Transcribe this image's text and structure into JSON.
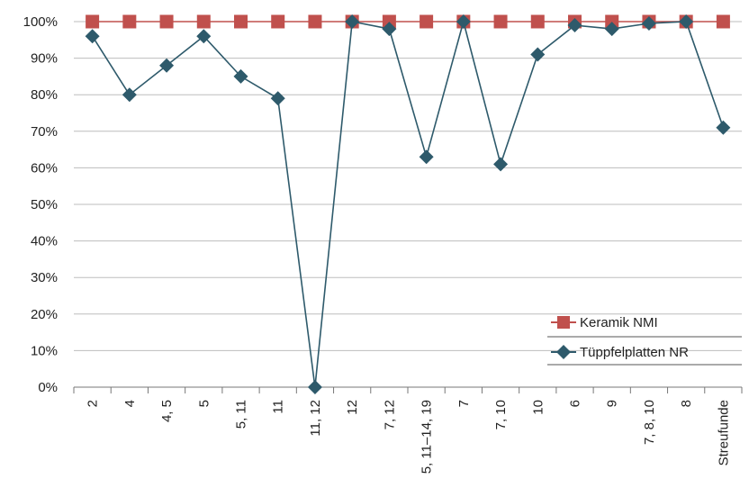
{
  "chart_data": {
    "type": "line",
    "categories": [
      "2",
      "4",
      "4, 5",
      "5",
      "5, 11",
      "11",
      "11, 12",
      "12",
      "7, 12",
      "5, 11–14, 19",
      "7",
      "7, 10",
      "10",
      "6",
      "9",
      "7, 8, 10",
      "8",
      "Streufunde"
    ],
    "series": [
      {
        "name": "Keramik NMI",
        "values": [
          100,
          100,
          100,
          100,
          100,
          100,
          100,
          100,
          100,
          100,
          100,
          100,
          100,
          100,
          100,
          100,
          100,
          100
        ],
        "color": "#c0504d",
        "marker": "square"
      },
      {
        "name": "Tüppfelplatten NR",
        "values": [
          96,
          80,
          88,
          96,
          85,
          79,
          0,
          100,
          98,
          63,
          100,
          61,
          91,
          99,
          98,
          99.5,
          100,
          71
        ],
        "color": "#2e5a6b",
        "marker": "diamond"
      }
    ],
    "ylim": [
      0,
      100
    ],
    "yticks": [
      "0%",
      "10%",
      "20%",
      "30%",
      "40%",
      "50%",
      "60%",
      "70%",
      "80%",
      "90%",
      "100%"
    ],
    "grid": true,
    "legend": "bottom-right"
  }
}
